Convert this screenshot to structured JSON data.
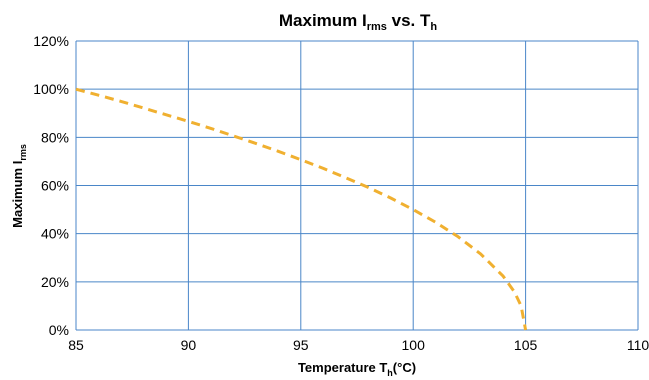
{
  "chart_data": {
    "type": "line",
    "title": {
      "main": "Maximum I",
      "main_sub": "rms",
      "mid": " vs. T",
      "mid_sub": "h"
    },
    "xlabel": {
      "main": "Temperature T",
      "sub": "h",
      "tail": "(°C)"
    },
    "ylabel": {
      "main": "Maximum I",
      "sub": "rms"
    },
    "xlim": [
      85,
      110
    ],
    "ylim": [
      0,
      120
    ],
    "x_ticks": [
      85,
      90,
      95,
      100,
      105,
      110
    ],
    "y_ticks": [
      0,
      20,
      40,
      60,
      80,
      100,
      120
    ],
    "x_tick_labels": [
      "85",
      "90",
      "95",
      "100",
      "105",
      "110"
    ],
    "y_tick_labels": [
      "0%",
      "20%",
      "40%",
      "60%",
      "80%",
      "100%",
      "120%"
    ],
    "grid": true,
    "series": [
      {
        "color": "#f0b030",
        "style": "dashed",
        "x": [
          85,
          86,
          87,
          88,
          89,
          90,
          91,
          92,
          93,
          94,
          95,
          96,
          97,
          98,
          99,
          100,
          101,
          102,
          103,
          104,
          104.5,
          104.8,
          105
        ],
        "y": [
          100,
          97.5,
          94.9,
          92.2,
          89.4,
          86.6,
          83.7,
          80.6,
          77.5,
          74.2,
          70.7,
          67.1,
          63.2,
          59.2,
          54.8,
          50,
          44.7,
          38.7,
          31.6,
          22.4,
          15.8,
          10,
          0
        ]
      }
    ]
  }
}
